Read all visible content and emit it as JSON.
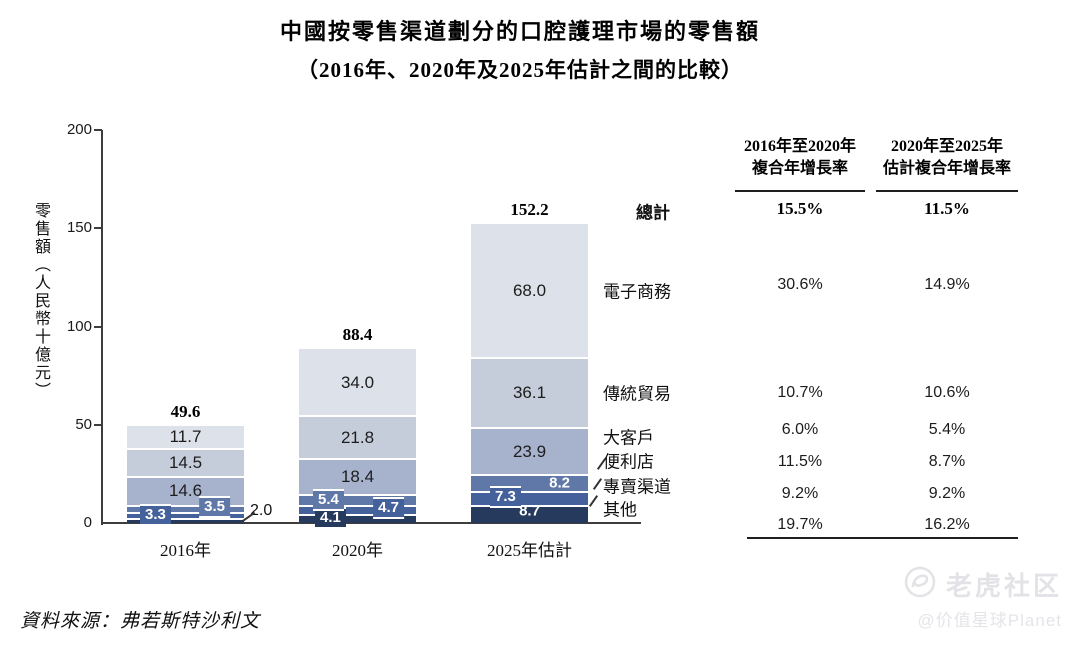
{
  "title": {
    "line1": "中國按零售渠道劃分的口腔護理市場的零售額",
    "line2": "（2016年、2020年及2025年估計之間的比較）"
  },
  "chart_data": {
    "type": "bar",
    "stacked": true,
    "title": "中國按零售渠道劃分的口腔護理市場的零售額（2016年、2020年及2025年估計之間的比較）",
    "ylabel": "零售額（人民幣十億元）",
    "ylim": [
      0,
      200
    ],
    "yticks": [
      0,
      50,
      100,
      150,
      200
    ],
    "grid": false,
    "legend_position": "right-of-last-bar",
    "categories": [
      "2016年",
      "2020年",
      "2025年估計"
    ],
    "series": [
      {
        "name": "其他",
        "color": "#263a5e",
        "values": [
          2.0,
          4.1,
          8.7
        ]
      },
      {
        "name": "專賣渠道",
        "color": "#44619b",
        "values": [
          3.3,
          4.7,
          7.3
        ]
      },
      {
        "name": "便利店",
        "color": "#6078a8",
        "values": [
          3.5,
          5.4,
          8.2
        ]
      },
      {
        "name": "大客戶",
        "color": "#a7b2cd",
        "values": [
          14.6,
          18.4,
          23.9
        ]
      },
      {
        "name": "傳統貿易",
        "color": "#c5cdda",
        "values": [
          14.5,
          21.8,
          36.1
        ]
      },
      {
        "name": "電子商務",
        "color": "#dde1e9",
        "values": [
          11.7,
          34.0,
          68.0
        ]
      }
    ],
    "totals": [
      49.6,
      88.4,
      152.2
    ],
    "totals_label": "總計"
  },
  "growth_table": {
    "col1_header": [
      "2016年至2020年",
      "複合年增長率"
    ],
    "col2_header": [
      "2020年至2025年",
      "估計複合年增長率"
    ],
    "rows": [
      {
        "label": "總計",
        "cagr_2016_2020": "15.5%",
        "cagr_2020_2025e": "11.5%",
        "bold": true
      },
      {
        "label": "電子商務",
        "cagr_2016_2020": "30.6%",
        "cagr_2020_2025e": "14.9%",
        "bold": false
      },
      {
        "label": "傳統貿易",
        "cagr_2016_2020": "10.7%",
        "cagr_2020_2025e": "10.6%",
        "bold": false
      },
      {
        "label": "大客戶",
        "cagr_2016_2020": "6.0%",
        "cagr_2020_2025e": "5.4%",
        "bold": false
      },
      {
        "label": "便利店",
        "cagr_2016_2020": "11.5%",
        "cagr_2020_2025e": "8.7%",
        "bold": false
      },
      {
        "label": "專賣渠道",
        "cagr_2016_2020": "9.2%",
        "cagr_2020_2025e": "9.2%",
        "bold": false
      },
      {
        "label": "其他",
        "cagr_2016_2020": "19.7%",
        "cagr_2020_2025e": "16.2%",
        "bold": false
      }
    ]
  },
  "source": "資料來源：弗若斯特沙利文",
  "watermark": {
    "brand": "老虎社区",
    "handle": "@价值星球Planet"
  }
}
